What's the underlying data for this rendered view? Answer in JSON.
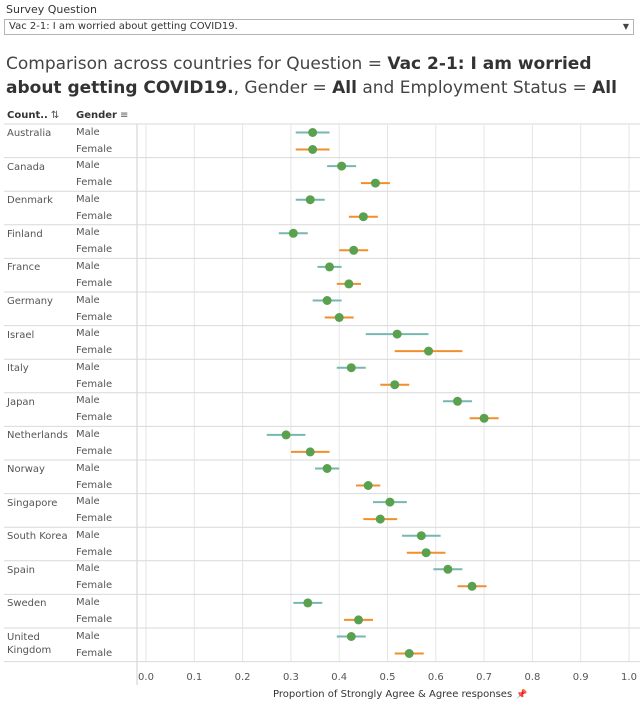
{
  "survey": {
    "label": "Survey Question",
    "selected": "Vac 2-1: I am worried about getting COVID19."
  },
  "title": {
    "prefix": "Comparison across countries for Question = ",
    "question": "Vac 2-1: I am worried about getting COVID19.",
    "gender_text": ", Gender = ",
    "gender": "All",
    "employment_text": " and Employment Status = ",
    "employment": "All"
  },
  "headers": {
    "country": "Count..",
    "gender": "Gender"
  },
  "axis": {
    "title": "Proportion of Strongly Agree & Agree responses"
  },
  "colors": {
    "male": "#76b7b2",
    "female": "#f28e2b",
    "point": "#59a14f",
    "grid": "#e6e6e6",
    "row_border": "#d9d9d9"
  },
  "chart_data": {
    "type": "scatter",
    "xlabel": "Proportion of Strongly Agree & Agree responses",
    "xlim": [
      0,
      1
    ],
    "xticks": [
      "0.0",
      "0.1",
      "0.2",
      "0.3",
      "0.4",
      "0.5",
      "0.6",
      "0.7",
      "0.8",
      "0.9",
      "1.0"
    ],
    "xtick_values": [
      0,
      0.1,
      0.2,
      0.3,
      0.4,
      0.5,
      0.6,
      0.7,
      0.8,
      0.9,
      1.0
    ],
    "error_bars": true,
    "groups": [
      {
        "country": "Australia",
        "rows": [
          {
            "gender": "Male",
            "value": 0.345,
            "low": 0.31,
            "high": 0.38
          },
          {
            "gender": "Female",
            "value": 0.345,
            "low": 0.31,
            "high": 0.38
          }
        ]
      },
      {
        "country": "Canada",
        "rows": [
          {
            "gender": "Male",
            "value": 0.405,
            "low": 0.375,
            "high": 0.435
          },
          {
            "gender": "Female",
            "value": 0.475,
            "low": 0.445,
            "high": 0.505
          }
        ]
      },
      {
        "country": "Denmark",
        "rows": [
          {
            "gender": "Male",
            "value": 0.34,
            "low": 0.31,
            "high": 0.37
          },
          {
            "gender": "Female",
            "value": 0.45,
            "low": 0.42,
            "high": 0.48
          }
        ]
      },
      {
        "country": "Finland",
        "rows": [
          {
            "gender": "Male",
            "value": 0.305,
            "low": 0.275,
            "high": 0.335
          },
          {
            "gender": "Female",
            "value": 0.43,
            "low": 0.4,
            "high": 0.46
          }
        ]
      },
      {
        "country": "France",
        "rows": [
          {
            "gender": "Male",
            "value": 0.38,
            "low": 0.355,
            "high": 0.405
          },
          {
            "gender": "Female",
            "value": 0.42,
            "low": 0.395,
            "high": 0.445
          }
        ]
      },
      {
        "country": "Germany",
        "rows": [
          {
            "gender": "Male",
            "value": 0.375,
            "low": 0.345,
            "high": 0.405
          },
          {
            "gender": "Female",
            "value": 0.4,
            "low": 0.37,
            "high": 0.43
          }
        ]
      },
      {
        "country": "Israel",
        "rows": [
          {
            "gender": "Male",
            "value": 0.52,
            "low": 0.455,
            "high": 0.585
          },
          {
            "gender": "Female",
            "value": 0.585,
            "low": 0.515,
            "high": 0.655
          }
        ]
      },
      {
        "country": "Italy",
        "rows": [
          {
            "gender": "Male",
            "value": 0.425,
            "low": 0.395,
            "high": 0.455
          },
          {
            "gender": "Female",
            "value": 0.515,
            "low": 0.485,
            "high": 0.545
          }
        ]
      },
      {
        "country": "Japan",
        "rows": [
          {
            "gender": "Male",
            "value": 0.645,
            "low": 0.615,
            "high": 0.675
          },
          {
            "gender": "Female",
            "value": 0.7,
            "low": 0.67,
            "high": 0.73
          }
        ]
      },
      {
        "country": "Netherlands",
        "rows": [
          {
            "gender": "Male",
            "value": 0.29,
            "low": 0.25,
            "high": 0.33
          },
          {
            "gender": "Female",
            "value": 0.34,
            "low": 0.3,
            "high": 0.38
          }
        ]
      },
      {
        "country": "Norway",
        "rows": [
          {
            "gender": "Male",
            "value": 0.375,
            "low": 0.35,
            "high": 0.4
          },
          {
            "gender": "Female",
            "value": 0.46,
            "low": 0.435,
            "high": 0.485
          }
        ]
      },
      {
        "country": "Singapore",
        "rows": [
          {
            "gender": "Male",
            "value": 0.505,
            "low": 0.47,
            "high": 0.54
          },
          {
            "gender": "Female",
            "value": 0.485,
            "low": 0.45,
            "high": 0.52
          }
        ]
      },
      {
        "country": "South Korea",
        "rows": [
          {
            "gender": "Male",
            "value": 0.57,
            "low": 0.53,
            "high": 0.61
          },
          {
            "gender": "Female",
            "value": 0.58,
            "low": 0.54,
            "high": 0.62
          }
        ]
      },
      {
        "country": "Spain",
        "rows": [
          {
            "gender": "Male",
            "value": 0.625,
            "low": 0.595,
            "high": 0.655
          },
          {
            "gender": "Female",
            "value": 0.675,
            "low": 0.645,
            "high": 0.705
          }
        ]
      },
      {
        "country": "Sweden",
        "rows": [
          {
            "gender": "Male",
            "value": 0.335,
            "low": 0.305,
            "high": 0.365
          },
          {
            "gender": "Female",
            "value": 0.44,
            "low": 0.41,
            "high": 0.47
          }
        ]
      },
      {
        "country": "United Kingdom",
        "rows": [
          {
            "gender": "Male",
            "value": 0.425,
            "low": 0.395,
            "high": 0.455
          },
          {
            "gender": "Female",
            "value": 0.545,
            "low": 0.515,
            "high": 0.575
          }
        ]
      }
    ]
  }
}
